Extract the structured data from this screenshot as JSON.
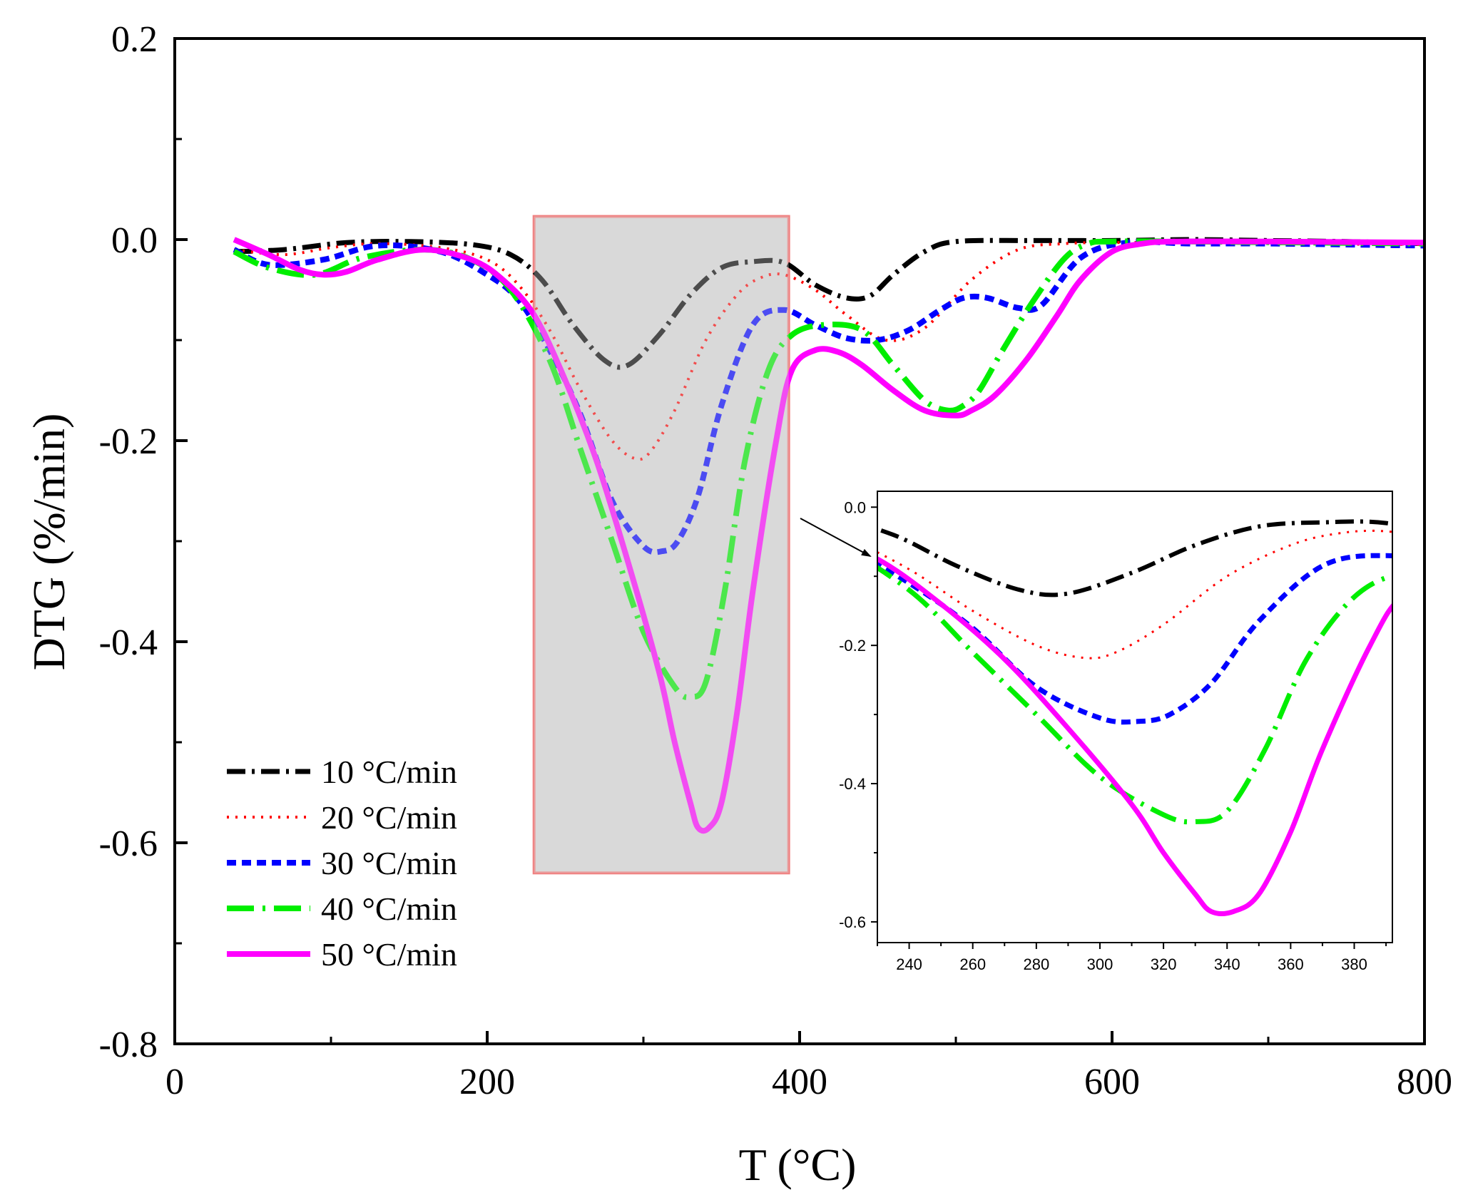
{
  "chart_data": {
    "type": "line",
    "xlabel": "T (°C)",
    "ylabel": "DTG (%/min)",
    "xlim": [
      0,
      800
    ],
    "ylim": [
      -0.8,
      0.2
    ],
    "xticks": [
      0,
      200,
      400,
      600,
      800
    ],
    "yticks": [
      0.2,
      0.0,
      -0.2,
      -0.4,
      -0.6,
      -0.8
    ],
    "xtick_labels": [
      "0",
      "200",
      "400",
      "600",
      "800"
    ],
    "ytick_labels": [
      "0.2",
      "0.0",
      "-0.2",
      "-0.4",
      "-0.6",
      "-0.8"
    ],
    "highlight_region": {
      "x": [
        230,
        393
      ],
      "y": [
        -0.63,
        0.023
      ],
      "fill": "#d9d9d9",
      "stroke": "#f08080"
    },
    "legend_location": "lower-left",
    "series": [
      {
        "name": "10 °C/min",
        "color": "#000000",
        "dash": "26 9 4 9",
        "width": 7,
        "x": [
          38,
          70,
          110,
          150,
          190,
          215,
          235,
          255,
          275,
          290,
          310,
          330,
          350,
          370,
          390,
          410,
          430,
          445,
          460,
          480,
          500,
          550,
          600,
          650,
          700,
          750,
          800
        ],
        "y": [
          -0.012,
          -0.01,
          -0.003,
          -0.002,
          -0.005,
          -0.015,
          -0.04,
          -0.085,
          -0.12,
          -0.125,
          -0.095,
          -0.055,
          -0.028,
          -0.022,
          -0.023,
          -0.045,
          -0.058,
          -0.056,
          -0.035,
          -0.012,
          -0.002,
          -0.001,
          -0.001,
          0.0,
          -0.001,
          -0.002,
          -0.004
        ]
      },
      {
        "name": "20 °C/min",
        "color": "#ff0000",
        "dash": "3 9",
        "width": 4,
        "x": [
          38,
          70,
          100,
          130,
          170,
          200,
          220,
          240,
          260,
          280,
          295,
          305,
          320,
          340,
          360,
          375,
          390,
          410,
          430,
          455,
          480,
          510,
          540,
          570,
          600,
          650,
          700,
          800
        ],
        "y": [
          -0.01,
          -0.015,
          -0.008,
          -0.004,
          -0.008,
          -0.02,
          -0.045,
          -0.09,
          -0.15,
          -0.2,
          -0.218,
          -0.21,
          -0.17,
          -0.1,
          -0.055,
          -0.038,
          -0.035,
          -0.05,
          -0.075,
          -0.1,
          -0.088,
          -0.04,
          -0.01,
          -0.004,
          -0.003,
          -0.003,
          -0.004,
          -0.005
        ]
      },
      {
        "name": "30 °C/min",
        "color": "#0000ff",
        "dash": "13 8",
        "width": 8,
        "x": [
          38,
          60,
          95,
          130,
          170,
          200,
          220,
          240,
          260,
          280,
          300,
          312,
          322,
          335,
          350,
          370,
          390,
          410,
          430,
          450,
          470,
          490,
          505,
          520,
          540,
          555,
          580,
          610,
          650,
          700,
          800
        ],
        "y": [
          -0.01,
          -0.025,
          -0.02,
          -0.006,
          -0.012,
          -0.035,
          -0.06,
          -0.11,
          -0.175,
          -0.26,
          -0.305,
          -0.31,
          -0.3,
          -0.255,
          -0.165,
          -0.085,
          -0.07,
          -0.085,
          -0.098,
          -0.1,
          -0.09,
          -0.07,
          -0.058,
          -0.058,
          -0.068,
          -0.065,
          -0.018,
          -0.003,
          -0.004,
          -0.004,
          -0.006
        ]
      },
      {
        "name": "40 °C/min",
        "color": "#00ee00",
        "dash": "38 12 4 12",
        "width": 8,
        "x": [
          38,
          60,
          90,
          120,
          160,
          190,
          215,
          240,
          260,
          280,
          300,
          320,
          330,
          340,
          352,
          365,
          380,
          395,
          415,
          440,
          460,
          480,
          495,
          505,
          515,
          530,
          550,
          570,
          585,
          600,
          650,
          800
        ],
        "y": [
          -0.012,
          -0.028,
          -0.035,
          -0.018,
          -0.01,
          -0.02,
          -0.05,
          -0.12,
          -0.21,
          -0.3,
          -0.39,
          -0.445,
          -0.455,
          -0.44,
          -0.35,
          -0.22,
          -0.13,
          -0.095,
          -0.085,
          -0.09,
          -0.125,
          -0.16,
          -0.17,
          -0.165,
          -0.15,
          -0.11,
          -0.06,
          -0.018,
          -0.004,
          -0.002,
          -0.002,
          -0.004
        ]
      },
      {
        "name": "50 °C/min",
        "color": "#ff00ff",
        "dash": "",
        "width": 8,
        "x": [
          38,
          60,
          80,
          95,
          110,
          130,
          160,
          190,
          210,
          230,
          250,
          270,
          290,
          310,
          320,
          330,
          335,
          342,
          350,
          360,
          370,
          385,
          395,
          410,
          425,
          440,
          460,
          480,
          500,
          510,
          525,
          545,
          565,
          580,
          600,
          620,
          640,
          700,
          800
        ],
        "y": [
          0.0,
          -0.015,
          -0.03,
          -0.035,
          -0.032,
          -0.02,
          -0.01,
          -0.02,
          -0.04,
          -0.075,
          -0.14,
          -0.22,
          -0.32,
          -0.43,
          -0.5,
          -0.56,
          -0.585,
          -0.585,
          -0.56,
          -0.47,
          -0.35,
          -0.2,
          -0.13,
          -0.11,
          -0.112,
          -0.125,
          -0.15,
          -0.17,
          -0.175,
          -0.17,
          -0.155,
          -0.12,
          -0.075,
          -0.04,
          -0.012,
          -0.004,
          -0.002,
          -0.002,
          -0.003
        ]
      }
    ],
    "inset": {
      "xlim": [
        230,
        392
      ],
      "ylim": [
        -0.63,
        0.023
      ],
      "xticks": [
        240,
        260,
        280,
        300,
        320,
        340,
        360,
        380
      ],
      "yticks": [
        0.0,
        -0.2,
        -0.4,
        -0.6
      ],
      "xtick_labels": [
        "240",
        "260",
        "280",
        "300",
        "320",
        "340",
        "360",
        "380"
      ],
      "ytick_labels": [
        "0.0",
        "-0.2",
        "-0.4",
        "-0.6"
      ]
    }
  }
}
